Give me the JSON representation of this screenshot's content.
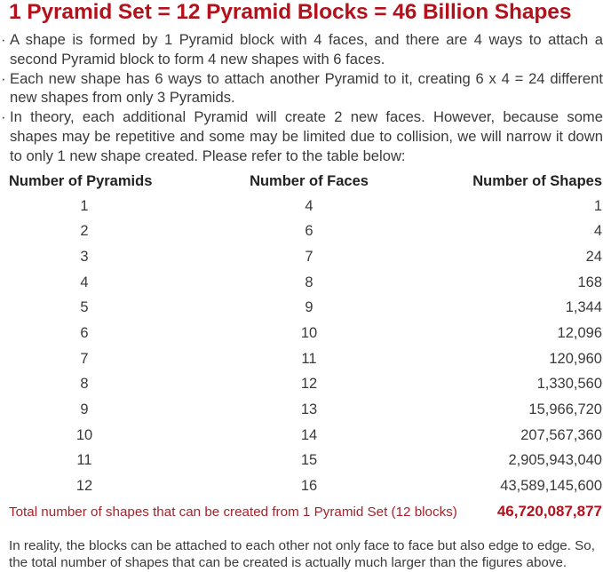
{
  "title": "1 Pyramid Set = 12 Pyramid Blocks = 46 Billion Shapes",
  "bullets": [
    "A shape is formed by 1 Pyramid block with 4 faces, and there are 4 ways to attach a second Pyramid block to form 4 new shapes with 6 faces.",
    "Each new shape has 6 ways to attach another Pyramid to it, creating 6 x 4 = 24 different new shapes from only 3 Pyramids.",
    "In theory, each additional Pyramid will create 2 new faces. However, because some shapes may be repetitive and some may be limited due to collision, we will narrow it down to only 1 new shape created. Please refer to the table below:"
  ],
  "table": {
    "headers": [
      "Number of Pyramids",
      "Number of Faces",
      "Number of Shapes"
    ],
    "rows": [
      [
        "1",
        "4",
        "1"
      ],
      [
        "2",
        "6",
        "4"
      ],
      [
        "3",
        "7",
        "24"
      ],
      [
        "4",
        "8",
        "168"
      ],
      [
        "5",
        "9",
        "1,344"
      ],
      [
        "6",
        "10",
        "12,096"
      ],
      [
        "7",
        "11",
        "120,960"
      ],
      [
        "8",
        "12",
        "1,330,560"
      ],
      [
        "9",
        "13",
        "15,966,720"
      ],
      [
        "10",
        "14",
        "207,567,360"
      ],
      [
        "11",
        "15",
        "2,905,943,040"
      ],
      [
        "12",
        "16",
        "43,589,145,600"
      ]
    ]
  },
  "total": {
    "label": "Total number of shapes that can be created from 1 Pyramid Set (12 blocks)",
    "value": "46,720,087,877"
  },
  "note": "In reality, the blocks can be attached to each other not only face to face but also edge to edge. So, the total number of shapes that can be created is actually much larger than the figures above.",
  "colors": {
    "accent": "#b3121c",
    "text": "#3a3a3a"
  }
}
